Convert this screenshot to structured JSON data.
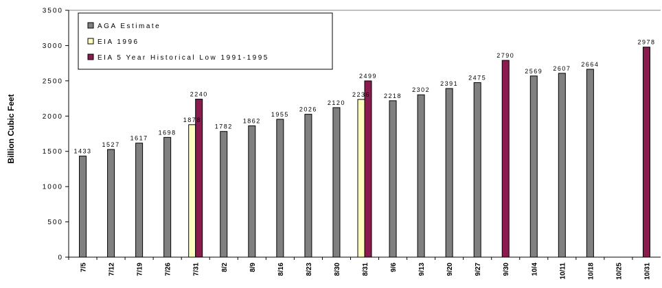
{
  "chart_data": {
    "type": "bar",
    "ylabel": "Billion Cubic Feet",
    "ylim": [
      0,
      3500
    ],
    "yticks": [
      "0",
      "500",
      "1000",
      "1500",
      "2000",
      "2500",
      "3000",
      "3500"
    ],
    "ytick_values": [
      0,
      500,
      1000,
      1500,
      2000,
      2500,
      3000,
      3500
    ],
    "categories": [
      "7/5",
      "7/12",
      "7/19",
      "7/26",
      "7/31",
      "8/2",
      "8/9",
      "8/16",
      "8/23",
      "8/30",
      "8/31",
      "9/6",
      "9/13",
      "9/20",
      "9/27",
      "9/30",
      "10/4",
      "10/11",
      "10/18",
      "10/25",
      "10/31"
    ],
    "series": [
      {
        "name": "AGA Estimate",
        "color": "#808080",
        "values": [
          1433,
          1527,
          1617,
          1698,
          null,
          1782,
          1862,
          1955,
          2026,
          2120,
          null,
          2218,
          2302,
          2391,
          2475,
          null,
          2569,
          2607,
          2664,
          null,
          null
        ]
      },
      {
        "name": "EIA 1996",
        "color": "#ffffc0",
        "values": [
          null,
          null,
          null,
          null,
          1878,
          null,
          null,
          null,
          null,
          null,
          2236,
          null,
          null,
          null,
          null,
          null,
          null,
          null,
          null,
          null,
          null
        ]
      },
      {
        "name": "EIA 5 Year Historical Low 1991-1995",
        "color": "#8b1a4f",
        "values": [
          null,
          null,
          null,
          null,
          2240,
          null,
          null,
          null,
          null,
          null,
          2499,
          null,
          null,
          null,
          null,
          2790,
          null,
          null,
          null,
          null,
          2978
        ]
      }
    ],
    "data_labels": [
      {
        "category": "7/5",
        "series": 0,
        "text": "1433"
      },
      {
        "category": "7/12",
        "series": 0,
        "text": "1527"
      },
      {
        "category": "7/19",
        "series": 0,
        "text": "1617"
      },
      {
        "category": "7/26",
        "series": 0,
        "text": "1698"
      },
      {
        "category": "7/31",
        "series": 1,
        "text": "1878"
      },
      {
        "category": "7/31",
        "series": 2,
        "text": "2240"
      },
      {
        "category": "8/2",
        "series": 0,
        "text": "1782"
      },
      {
        "category": "8/9",
        "series": 0,
        "text": "1862"
      },
      {
        "category": "8/16",
        "series": 0,
        "text": "1955"
      },
      {
        "category": "8/23",
        "series": 0,
        "text": "2026"
      },
      {
        "category": "8/30",
        "series": 0,
        "text": "2120"
      },
      {
        "category": "8/31",
        "series": 1,
        "text": "2236"
      },
      {
        "category": "8/31",
        "series": 2,
        "text": "2499"
      },
      {
        "category": "9/6",
        "series": 0,
        "text": "2218"
      },
      {
        "category": "9/13",
        "series": 0,
        "text": "2302"
      },
      {
        "category": "9/20",
        "series": 0,
        "text": "2391"
      },
      {
        "category": "9/27",
        "series": 0,
        "text": "2475"
      },
      {
        "category": "9/30",
        "series": 2,
        "text": "2790"
      },
      {
        "category": "10/4",
        "series": 0,
        "text": "2569"
      },
      {
        "category": "10/11",
        "series": 0,
        "text": "2607"
      },
      {
        "category": "10/18",
        "series": 0,
        "text": "2664"
      },
      {
        "category": "10/31",
        "series": 2,
        "text": "2978"
      }
    ],
    "legend": {
      "placement": "top-left",
      "entries": [
        "AGA Estimate",
        "EIA 1996",
        "EIA 5 Year Historical Low 1991-1995"
      ]
    },
    "grid": false
  }
}
